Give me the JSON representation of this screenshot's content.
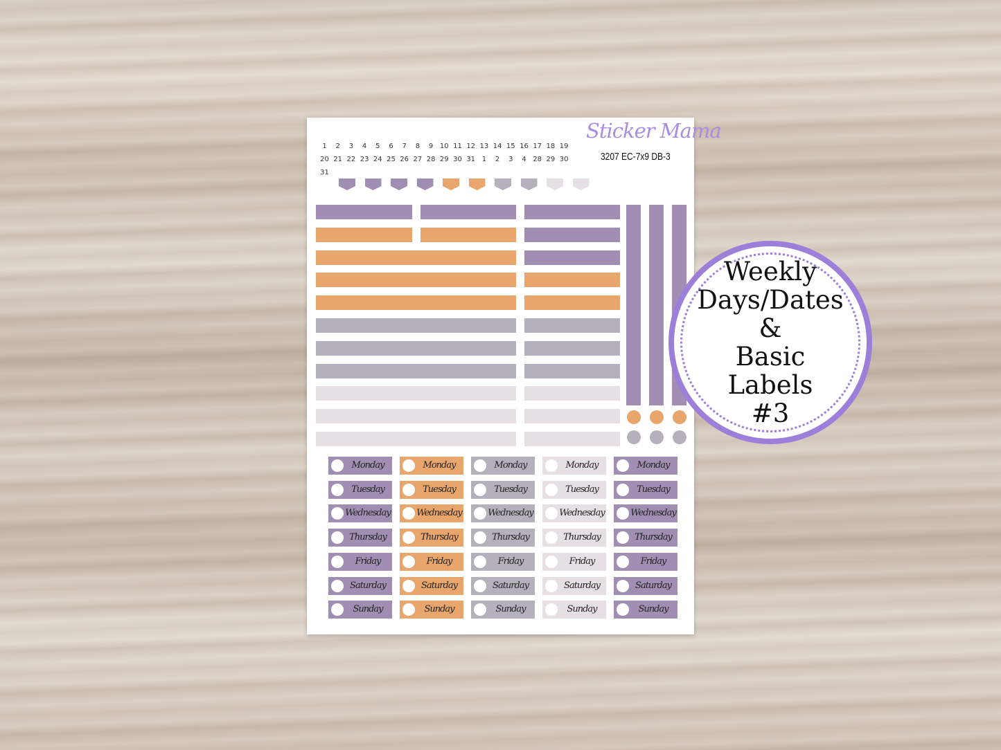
{
  "brand": "Sticker Mama",
  "code": "3207 EC-7x9 DB-3",
  "dates": [
    "1",
    "2",
    "3",
    "4",
    "5",
    "6",
    "7",
    "8",
    "9",
    "10",
    "11",
    "12",
    "13",
    "14",
    "15",
    "16",
    "17",
    "18",
    "19",
    "20",
    "21",
    "22",
    "23",
    "24",
    "25",
    "26",
    "27",
    "28",
    "29",
    "30",
    "31",
    "1",
    "2",
    "3",
    "4",
    "28",
    "29",
    "30",
    "31"
  ],
  "colors": {
    "purple": "#a08fb3",
    "orange": "#e8a66c",
    "gray": "#b4b0bc",
    "light": "#e6dfe4",
    "badge": "#9b7fd8"
  },
  "flags": [
    "purple",
    "purple",
    "purple",
    "purple",
    "orange",
    "orange",
    "gray",
    "gray",
    "light",
    "light"
  ],
  "bar_rows_left": [
    "purple-split",
    "orange-split",
    "orange",
    "orange",
    "orange",
    "gray",
    "gray",
    "gray",
    "light",
    "light",
    "light"
  ],
  "bar_rows_right": [
    "purple",
    "purple",
    "purple",
    "orange",
    "orange",
    "gray",
    "gray",
    "gray",
    "light",
    "light",
    "light"
  ],
  "dots": [
    "orange",
    "orange",
    "orange",
    "gray",
    "gray",
    "gray"
  ],
  "day_columns": [
    "purple",
    "orange",
    "gray",
    "light",
    "purple"
  ],
  "days": [
    "Monday",
    "Tuesday",
    "Wednesday",
    "Thursday",
    "Friday",
    "Saturday",
    "Sunday"
  ],
  "badge": {
    "line1": "Weekly",
    "line2": "Days/Dates",
    "line3": "&",
    "line4": "Basic",
    "line5": "Labels",
    "line6": "#3"
  }
}
